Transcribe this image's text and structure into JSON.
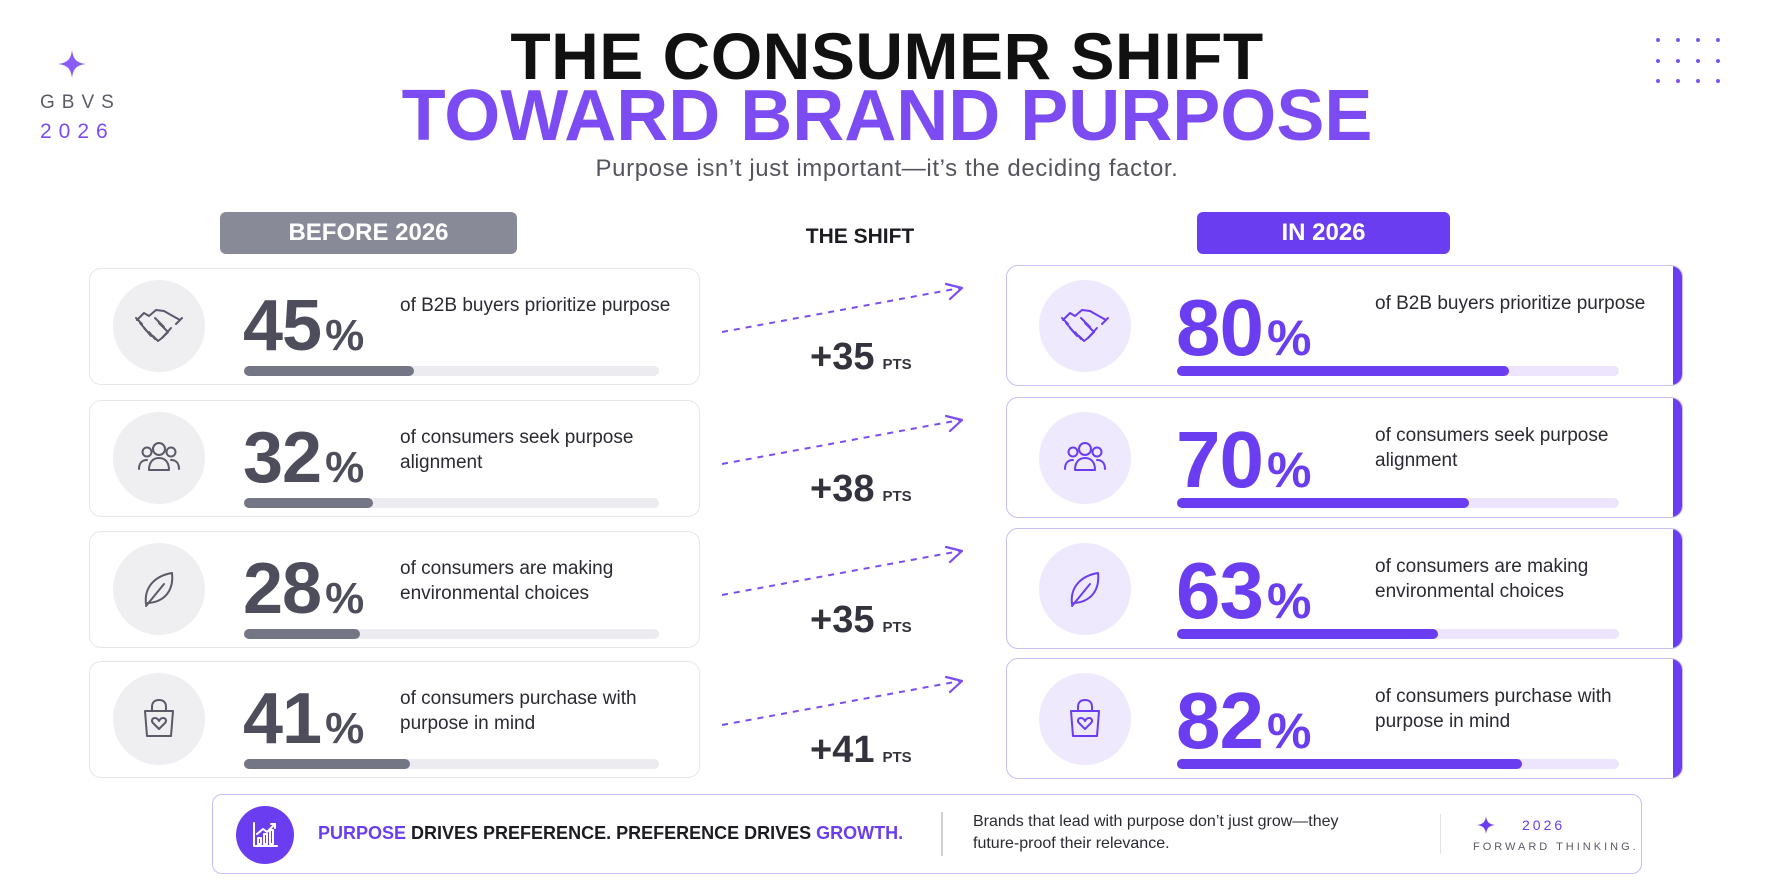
{
  "brand": {
    "name": "GBVS",
    "year": "2026",
    "icon": "sparkle-icon"
  },
  "title": {
    "line1": "THE CONSUMER SHIFT",
    "line2": "TOWARD BRAND PURPOSE",
    "subtitle": "Purpose isn’t just important—it’s the deciding factor."
  },
  "headers": {
    "before": "BEFORE 2026",
    "shift": "THE SHIFT",
    "after": "IN 2026"
  },
  "colors": {
    "accent": "#6a3ef0",
    "before_gray": "#888a98",
    "text_dark": "#1c1b22"
  },
  "rows": [
    {
      "icon": "handshake-icon",
      "before": {
        "value": "45",
        "sign": "%",
        "desc": "of B2B buyers prioritize purpose",
        "fill": 0.41
      },
      "shift": {
        "value": "+35",
        "unit": "PTS"
      },
      "after": {
        "value": "80",
        "sign": "%",
        "desc": "of B2B buyers prioritize purpose",
        "fill": 0.75
      }
    },
    {
      "icon": "people-icon",
      "before": {
        "value": "32",
        "sign": "%",
        "desc": "of consumers seek purpose alignment",
        "fill": 0.31
      },
      "shift": {
        "value": "+38",
        "unit": "PTS"
      },
      "after": {
        "value": "70",
        "sign": "%",
        "desc": "of consumers seek purpose alignment",
        "fill": 0.66
      }
    },
    {
      "icon": "leaf-icon",
      "before": {
        "value": "28",
        "sign": "%",
        "desc": "of consumers are making environmental choices",
        "fill": 0.28
      },
      "shift": {
        "value": "+35",
        "unit": "PTS"
      },
      "after": {
        "value": "63",
        "sign": "%",
        "desc": "of consumers are making environmental choices",
        "fill": 0.59
      }
    },
    {
      "icon": "shopping-bag-heart-icon",
      "before": {
        "value": "41",
        "sign": "%",
        "desc": "of consumers purchase with purpose in mind",
        "fill": 0.4
      },
      "shift": {
        "value": "+41",
        "unit": "PTS"
      },
      "after": {
        "value": "82",
        "sign": "%",
        "desc": "of consumers purchase with purpose in mind",
        "fill": 0.78
      }
    }
  ],
  "footer": {
    "icon": "growth-chart-icon",
    "headline": {
      "a": "PURPOSE",
      "b": " DRIVES PREFERENCE. PREFERENCE DRIVES ",
      "c": "GROWTH."
    },
    "body": "Brands that lead with purpose don’t just grow—they future-proof their relevance.",
    "year": "2026",
    "tagline": "FORWARD THINKING."
  }
}
